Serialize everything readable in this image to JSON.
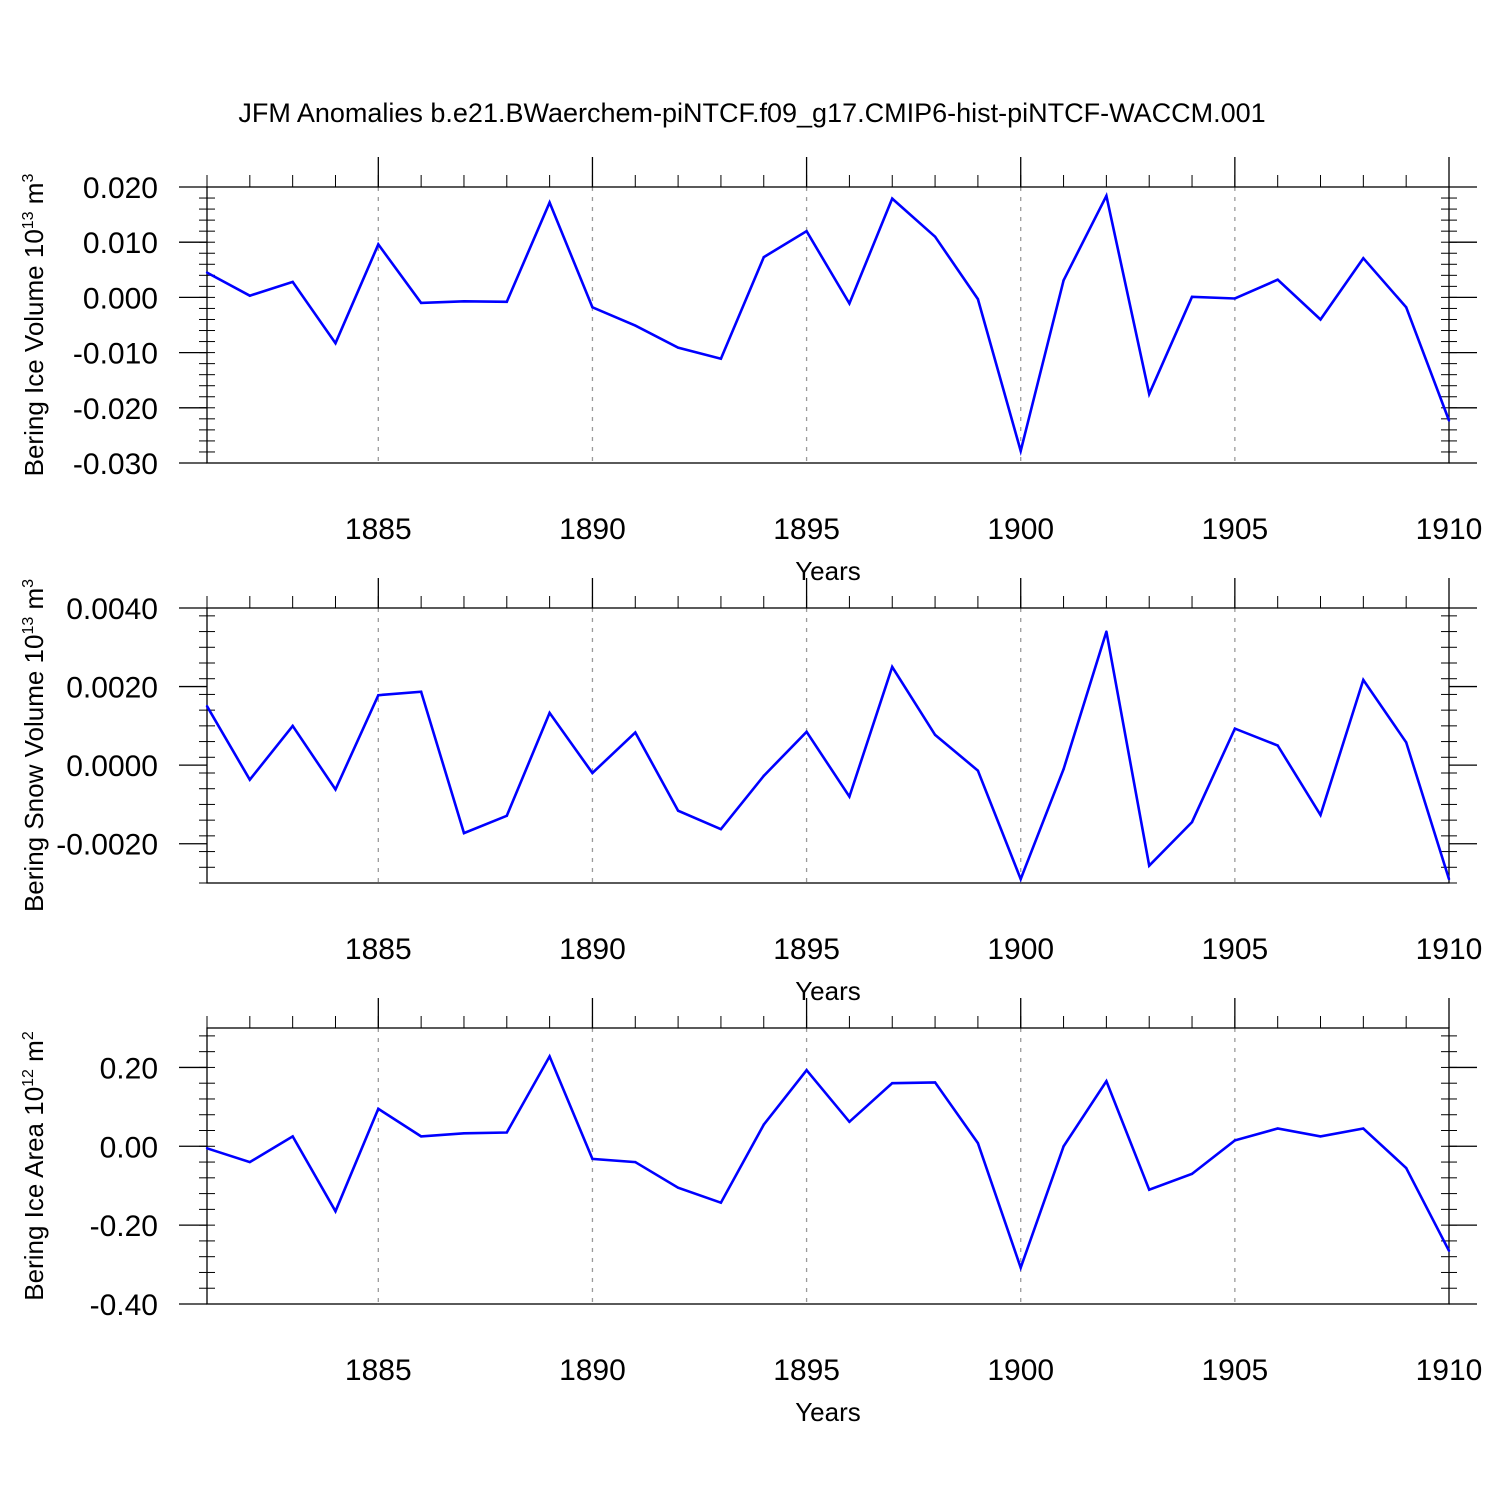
{
  "title": "JFM Anomalies b.e21.BWaerchem-piNTCF.f09_g17.CMIP6-hist-piNTCF-WACCM.001",
  "colors": {
    "line": "#0000ff",
    "axes": "#000000",
    "grid": "#9a9a9a"
  },
  "chart_data": [
    {
      "type": "line",
      "ylabel": {
        "text": "Bering Ice Volume 10",
        "exp": "13",
        "unit": " m",
        "unit_exp": "3"
      },
      "xlabel": "Years",
      "xlim": [
        1881,
        1910
      ],
      "ylim": [
        -0.03,
        0.02
      ],
      "xticks": [
        1885,
        1890,
        1895,
        1900,
        1905,
        1910
      ],
      "yticks": [
        -0.03,
        -0.02,
        -0.01,
        0.0,
        0.01,
        0.02
      ],
      "ytick_labels": [
        "-0.030",
        "-0.020",
        "-0.010",
        "0.000",
        "0.010",
        "0.020"
      ],
      "grid": "dashed vertical at major x ticks",
      "series": [
        {
          "name": "Bering Ice Volume",
          "x": [
            1881,
            1882,
            1883,
            1884,
            1885,
            1886,
            1887,
            1888,
            1889,
            1890,
            1891,
            1892,
            1893,
            1894,
            1895,
            1896,
            1897,
            1898,
            1899,
            1900,
            1901,
            1902,
            1903,
            1904,
            1905,
            1906,
            1907,
            1908,
            1909,
            1910
          ],
          "values": [
            0.0045,
            0.0003,
            0.0028,
            -0.0083,
            0.0096,
            -0.001,
            -0.0007,
            -0.0008,
            0.0172,
            -0.0018,
            -0.0051,
            -0.0091,
            -0.0111,
            0.0073,
            0.012,
            -0.0011,
            0.0179,
            0.011,
            -0.0003,
            -0.0278,
            0.0031,
            0.0184,
            -0.0175,
            0.0001,
            -0.0002,
            0.0032,
            -0.004,
            0.0071,
            -0.0018,
            -0.0223
          ]
        }
      ]
    },
    {
      "type": "line",
      "ylabel": {
        "text": "Bering Snow Volume 10",
        "exp": "13",
        "unit": " m",
        "unit_exp": "3"
      },
      "xlabel": "Years",
      "xlim": [
        1881,
        1910
      ],
      "ylim": [
        -0.003,
        0.004
      ],
      "xticks": [
        1885,
        1890,
        1895,
        1900,
        1905,
        1910
      ],
      "yticks": [
        -0.002,
        0.0,
        0.002,
        0.004
      ],
      "ytick_labels": [
        "-0.0020",
        "0.0000",
        "0.0020",
        "0.0040"
      ],
      "grid": "dashed vertical at major x ticks",
      "series": [
        {
          "name": "Bering Snow Volume",
          "x": [
            1881,
            1882,
            1883,
            1884,
            1885,
            1886,
            1887,
            1888,
            1889,
            1890,
            1891,
            1892,
            1893,
            1894,
            1895,
            1896,
            1897,
            1898,
            1899,
            1900,
            1901,
            1902,
            1903,
            1904,
            1905,
            1906,
            1907,
            1908,
            1909,
            1910
          ],
          "values": [
            0.0015,
            -0.00037,
            0.001,
            -0.00062,
            0.00178,
            0.00187,
            -0.00173,
            -0.00129,
            0.00133,
            -0.0002,
            0.00083,
            -0.00116,
            -0.00163,
            -0.00027,
            0.00085,
            -0.0008,
            0.0025,
            0.00077,
            -0.00014,
            -0.0029,
            -0.0001,
            0.0034,
            -0.00256,
            -0.00145,
            0.00093,
            0.0005,
            -0.00127,
            0.00217,
            0.00058,
            -0.0029
          ]
        }
      ]
    },
    {
      "type": "line",
      "ylabel": {
        "text": "Bering Ice Area 10",
        "exp": "12",
        "unit": " m",
        "unit_exp": "2"
      },
      "xlabel": "Years",
      "xlim": [
        1881,
        1910
      ],
      "ylim": [
        -0.4,
        0.3
      ],
      "xticks": [
        1885,
        1890,
        1895,
        1900,
        1905,
        1910
      ],
      "yticks": [
        -0.4,
        -0.2,
        0.0,
        0.2
      ],
      "ytick_labels": [
        "-0.40",
        "-0.20",
        "0.00",
        "0.20"
      ],
      "grid": "dashed vertical at major x ticks",
      "series": [
        {
          "name": "Bering Ice Area",
          "x": [
            1881,
            1882,
            1883,
            1884,
            1885,
            1886,
            1887,
            1888,
            1889,
            1890,
            1891,
            1892,
            1893,
            1894,
            1895,
            1896,
            1897,
            1898,
            1899,
            1900,
            1901,
            1902,
            1903,
            1904,
            1905,
            1906,
            1907,
            1908,
            1909,
            1910
          ],
          "values": [
            -0.005,
            -0.04,
            0.025,
            -0.165,
            0.095,
            0.025,
            0.033,
            0.035,
            0.228,
            -0.032,
            -0.04,
            -0.105,
            -0.143,
            0.055,
            0.193,
            0.062,
            0.16,
            0.162,
            0.008,
            -0.308,
            0.0,
            0.165,
            -0.11,
            -0.07,
            0.015,
            0.045,
            0.025,
            0.045,
            -0.055,
            -0.265
          ]
        }
      ]
    }
  ]
}
